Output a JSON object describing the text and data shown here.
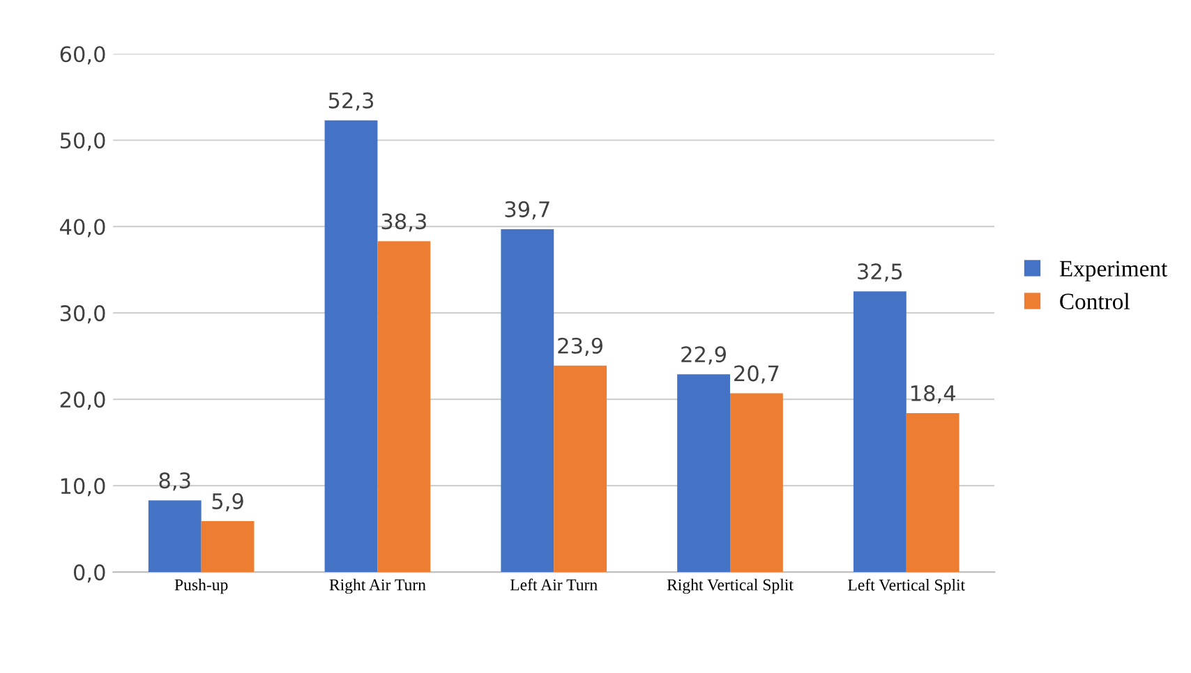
{
  "chart_data": {
    "type": "bar",
    "categories": [
      "Push-up",
      "Right Air Turn",
      "Left Air Turn",
      "Right Vertical Split",
      "Left Vertical Split"
    ],
    "series": [
      {
        "name": "Experiment",
        "color": "#4472c4",
        "values": [
          8.3,
          52.3,
          39.7,
          22.9,
          32.5
        ],
        "value_labels": [
          "8,3",
          "52,3",
          "39,7",
          "22,9",
          "32,5"
        ]
      },
      {
        "name": "Control",
        "color": "#ed7d31",
        "values": [
          5.9,
          38.3,
          23.9,
          20.7,
          18.4
        ],
        "value_labels": [
          "5,9",
          "38,3",
          "23,9",
          "20,7",
          "18,4"
        ]
      }
    ],
    "ylim": [
      0,
      60
    ],
    "yticks": [
      {
        "value": 0,
        "label": "0,0"
      },
      {
        "value": 10,
        "label": "10,0"
      },
      {
        "value": 20,
        "label": "20,0"
      },
      {
        "value": 30,
        "label": "30,0"
      },
      {
        "value": 40,
        "label": "40,0"
      },
      {
        "value": 50,
        "label": "50,0"
      },
      {
        "value": 60,
        "label": "60,0"
      }
    ],
    "grid": "y",
    "legend": "right"
  }
}
